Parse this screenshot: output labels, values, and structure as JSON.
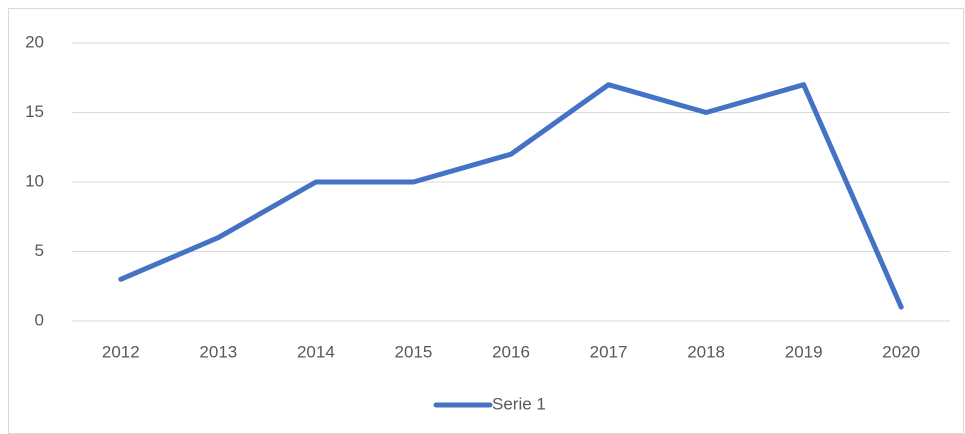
{
  "chart_data": {
    "type": "line",
    "categories": [
      "2012",
      "2013",
      "2014",
      "2015",
      "2016",
      "2017",
      "2018",
      "2019",
      "2020"
    ],
    "series": [
      {
        "name": "Serie 1",
        "color": "#4472c4",
        "values": [
          3,
          6,
          10,
          10,
          12,
          17,
          15,
          17,
          1
        ]
      }
    ],
    "ylim": [
      0,
      20
    ],
    "yticks": [
      0,
      5,
      10,
      15,
      20
    ],
    "grid": true,
    "legend": "bottom"
  }
}
